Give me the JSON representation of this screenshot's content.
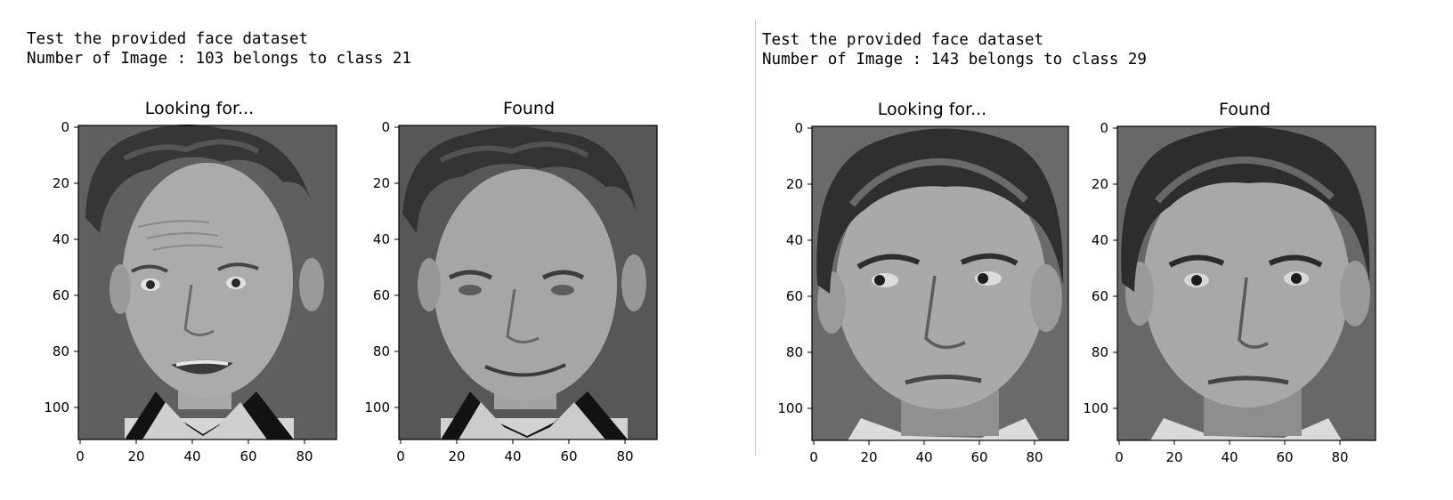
{
  "outputs": [
    {
      "line1": "Test the provided face dataset",
      "line2": "Number of Image : 103 belongs to class 21",
      "subplots": [
        {
          "title": "Looking for...",
          "face": "face-1-smiling-raised-brows"
        },
        {
          "title": "Found",
          "face": "face-1-smiling"
        }
      ]
    },
    {
      "line1": "Test the provided face dataset",
      "line2": "Number of Image : 143 belongs to class 29",
      "subplots": [
        {
          "title": "Looking for...",
          "face": "face-2-looking-left"
        },
        {
          "title": "Found",
          "face": "face-2-frontal"
        }
      ]
    }
  ],
  "chart_data": [
    {
      "type": "image",
      "title": "Looking for...",
      "x_ticks": [
        0,
        20,
        40,
        60,
        80
      ],
      "y_ticks": [
        0,
        20,
        40,
        60,
        80,
        100
      ],
      "xlim": [
        0,
        92
      ],
      "ylim": [
        112,
        0
      ]
    },
    {
      "type": "image",
      "title": "Found",
      "x_ticks": [
        0,
        20,
        40,
        60,
        80
      ],
      "y_ticks": [
        0,
        20,
        40,
        60,
        80,
        100
      ],
      "xlim": [
        0,
        92
      ],
      "ylim": [
        112,
        0
      ]
    },
    {
      "type": "image",
      "title": "Looking for...",
      "x_ticks": [
        0,
        20,
        40,
        60,
        80
      ],
      "y_ticks": [
        0,
        20,
        40,
        60,
        80,
        100
      ],
      "xlim": [
        0,
        92
      ],
      "ylim": [
        112,
        0
      ]
    },
    {
      "type": "image",
      "title": "Found",
      "x_ticks": [
        0,
        20,
        40,
        60,
        80
      ],
      "y_ticks": [
        0,
        20,
        40,
        60,
        80,
        100
      ],
      "xlim": [
        0,
        92
      ],
      "ylim": [
        112,
        0
      ]
    }
  ]
}
